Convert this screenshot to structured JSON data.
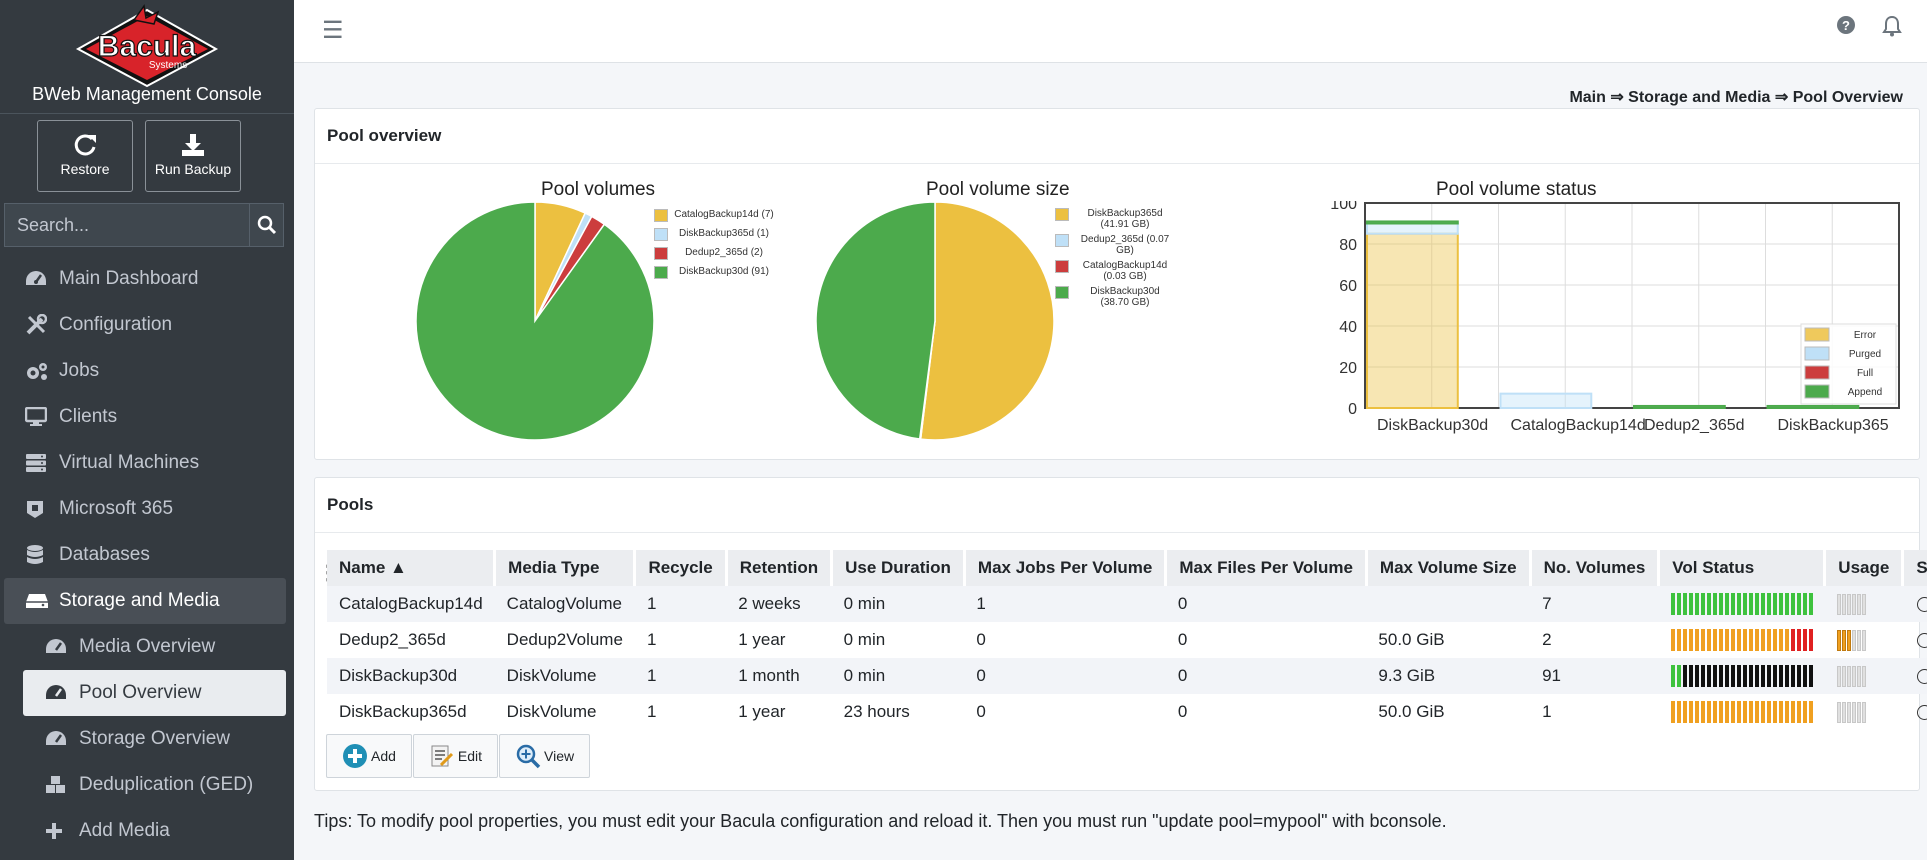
{
  "sidebar": {
    "brand_title": "BWeb Management Console",
    "logo_text": "Bacula",
    "logo_subtext": "Systems",
    "actions": [
      {
        "label": "Restore",
        "icon": "refresh-icon"
      },
      {
        "label": "Run Backup",
        "icon": "download-icon"
      }
    ],
    "search_placeholder": "Search...",
    "nav": [
      {
        "label": "Main Dashboard",
        "icon": "tachometer-icon"
      },
      {
        "label": "Configuration",
        "icon": "tools-icon"
      },
      {
        "label": "Jobs",
        "icon": "cogs-icon"
      },
      {
        "label": "Clients",
        "icon": "desktop-icon"
      },
      {
        "label": "Virtual Machines",
        "icon": "server-icon"
      },
      {
        "label": "Microsoft 365",
        "icon": "office-icon"
      },
      {
        "label": "Databases",
        "icon": "database-icon"
      },
      {
        "label": "Storage and Media",
        "icon": "hdd-icon"
      }
    ],
    "subnav": [
      {
        "label": "Media Overview",
        "icon": "tachometer-icon"
      },
      {
        "label": "Pool Overview",
        "icon": "tachometer-icon"
      },
      {
        "label": "Storage Overview",
        "icon": "tachometer-icon"
      },
      {
        "label": "Deduplication (GED)",
        "icon": "cubes-icon"
      },
      {
        "label": "Add Media",
        "icon": "plus-icon"
      }
    ]
  },
  "breadcrumb": "Main ⇒ Storage and Media ⇒ Pool Overview",
  "overview_card_title": "Pool overview",
  "pools_card_title": "Pools",
  "colors": {
    "yellow": "#ecc040",
    "light_blue": "#bfe0f7",
    "red": "#cc3d3d",
    "green": "#4caa4c",
    "black": "#111111"
  },
  "chart_data": [
    {
      "type": "pie",
      "title": "Pool volumes",
      "legend_position": "right",
      "labels": [
        "CatalogBackup14d (7)",
        "DiskBackup365d (1)",
        "Dedup2_365d (2)",
        "DiskBackup30d (91)"
      ],
      "values": [
        7,
        1,
        2,
        91
      ],
      "colors": [
        "#ecc040",
        "#bfe0f7",
        "#cc3d3d",
        "#4caa4c"
      ]
    },
    {
      "type": "pie",
      "title": "Pool volume size",
      "legend_position": "right",
      "labels": [
        "DiskBackup365d (41.91 GB)",
        "Dedup2_365d (0.07 GB)",
        "CatalogBackup14d (0.03 GB)",
        "DiskBackup30d (38.70 GB)"
      ],
      "values": [
        41.91,
        0.07,
        0.03,
        38.7
      ],
      "colors": [
        "#ecc040",
        "#bfe0f7",
        "#cc3d3d",
        "#4caa4c"
      ]
    },
    {
      "type": "bar",
      "title": "Pool volume status",
      "categories": [
        "DiskBackup30d",
        "CatalogBackup14d",
        "Dedup2_365d",
        "DiskBackup365"
      ],
      "ylim": [
        0,
        100
      ],
      "yticks": [
        0,
        20,
        40,
        60,
        80,
        100
      ],
      "grid": true,
      "legend_position": "bottom-right",
      "series": [
        {
          "name": "Error",
          "values": [
            85,
            0,
            0,
            0
          ],
          "color": "#ecc040"
        },
        {
          "name": "Purged",
          "values": [
            5,
            7,
            0,
            0
          ],
          "color": "#bfe0f7"
        },
        {
          "name": "Full",
          "values": [
            0,
            0,
            0,
            0
          ],
          "color": "#cc3d3d"
        },
        {
          "name": "Append",
          "values": [
            1,
            0,
            1,
            1
          ],
          "color": "#4caa4c"
        }
      ]
    }
  ],
  "table": {
    "headers": [
      "Name ▲",
      "Media Type",
      "Recycle",
      "Retention",
      "Use Duration",
      "Max Jobs Per Volume",
      "Max Files Per Volume",
      "Max Volume Size",
      "No. Volumes",
      "Vol Status",
      "Usage",
      "Select"
    ],
    "rows": [
      {
        "name": "CatalogBackup14d",
        "media_type": "CatalogVolume",
        "recycle": "1",
        "retention": "2 weeks",
        "use_duration": "0 min",
        "max_jobs": "1",
        "max_files": "0",
        "max_size": "",
        "no_volumes": "7",
        "vol_status": [
          "#3ec23e",
          "#3ec23e",
          "#3ec23e",
          "#3ec23e",
          "#3ec23e",
          "#3ec23e",
          "#3ec23e",
          "#3ec23e",
          "#3ec23e",
          "#3ec23e",
          "#3ec23e",
          "#3ec23e",
          "#3ec23e",
          "#3ec23e",
          "#3ec23e",
          "#3ec23e",
          "#3ec23e",
          "#3ec23e",
          "#3ec23e",
          "#3ec23e",
          "#3ec23e",
          "#3ec23e",
          "#3ec23e",
          "#3ec23e",
          "#3ec23e",
          "#3ec23e",
          "#3ec23e",
          "#3ec23e",
          "#3ec23e",
          "#3ec23e",
          "#3ec23e",
          "#3ec23e",
          "#3ec23e",
          "#3ec23e",
          "#3ec23e",
          "#3ec23e",
          "#3ec23e",
          "#3ec23e",
          "#3ec23e",
          "#3ec23e"
        ],
        "usage": 0
      },
      {
        "name": "Dedup2_365d",
        "media_type": "Dedup2Volume",
        "recycle": "1",
        "retention": "1 year",
        "use_duration": "0 min",
        "max_jobs": "0",
        "max_files": "0",
        "max_size": "50.0 GiB",
        "no_volumes": "2",
        "vol_status": [
          "#f0a020",
          "#f0a020",
          "#f0a020",
          "#f0a020",
          "#f0a020",
          "#f0a020",
          "#f0a020",
          "#f0a020",
          "#f0a020",
          "#f0a020",
          "#f0a020",
          "#f0a020",
          "#f0a020",
          "#f0a020",
          "#f0a020",
          "#f0a020",
          "#f0a020",
          "#f0a020",
          "#f0a020",
          "#f0a020",
          "#e02020",
          "#e02020",
          "#e02020",
          "#e02020",
          "#e02020",
          "#e02020",
          "#e02020",
          "#e02020",
          "#e02020",
          "#e02020",
          "#e02020",
          "#e02020",
          "#e02020",
          "#e02020",
          "#e02020",
          "#e02020",
          "#e02020",
          "#e02020",
          "#e02020",
          "#e02020"
        ],
        "usage": 0.5
      },
      {
        "name": "DiskBackup30d",
        "media_type": "DiskVolume",
        "recycle": "1",
        "retention": "1 month",
        "use_duration": "0 min",
        "max_jobs": "0",
        "max_files": "0",
        "max_size": "9.3 GiB",
        "no_volumes": "91",
        "vol_status": [
          "#3ec23e",
          "#3ec23e",
          "#111111",
          "#111111",
          "#111111",
          "#111111",
          "#111111",
          "#111111",
          "#111111",
          "#111111",
          "#111111",
          "#111111",
          "#111111",
          "#111111",
          "#111111",
          "#111111",
          "#111111",
          "#111111",
          "#111111",
          "#111111",
          "#111111",
          "#111111",
          "#111111",
          "#111111",
          "#111111",
          "#111111",
          "#111111",
          "#111111",
          "#111111",
          "#111111",
          "#111111",
          "#111111",
          "#111111",
          "#111111",
          "#111111",
          "#111111",
          "#111111",
          "#111111"
        ],
        "usage": 0
      },
      {
        "name": "DiskBackup365d",
        "media_type": "DiskVolume",
        "recycle": "1",
        "retention": "1 year",
        "use_duration": "23 hours",
        "max_jobs": "0",
        "max_files": "0",
        "max_size": "50.0 GiB",
        "no_volumes": "1",
        "vol_status": [
          "#f0a020",
          "#f0a020",
          "#f0a020",
          "#f0a020",
          "#f0a020",
          "#f0a020",
          "#f0a020",
          "#f0a020",
          "#f0a020",
          "#f0a020",
          "#f0a020",
          "#f0a020",
          "#f0a020",
          "#f0a020",
          "#f0a020",
          "#f0a020",
          "#f0a020",
          "#f0a020",
          "#f0a020",
          "#f0a020",
          "#f0a020",
          "#f0a020",
          "#f0a020",
          "#f0a020",
          "#f0a020",
          "#f0a020",
          "#f0a020",
          "#f0a020",
          "#f0a020",
          "#f0a020",
          "#f0a020",
          "#f0a020",
          "#f0a020",
          "#f0a020",
          "#f0a020",
          "#f0a020",
          "#f0a020",
          "#f0a020",
          "#f0a020",
          "#f0a020"
        ],
        "usage": 0
      }
    ]
  },
  "buttons": {
    "add": "Add",
    "edit": "Edit",
    "view": "View"
  },
  "tips": "Tips: To modify pool properties, you must edit your Bacula configuration and reload it. Then you must run \"update pool=mypool\" with bconsole."
}
